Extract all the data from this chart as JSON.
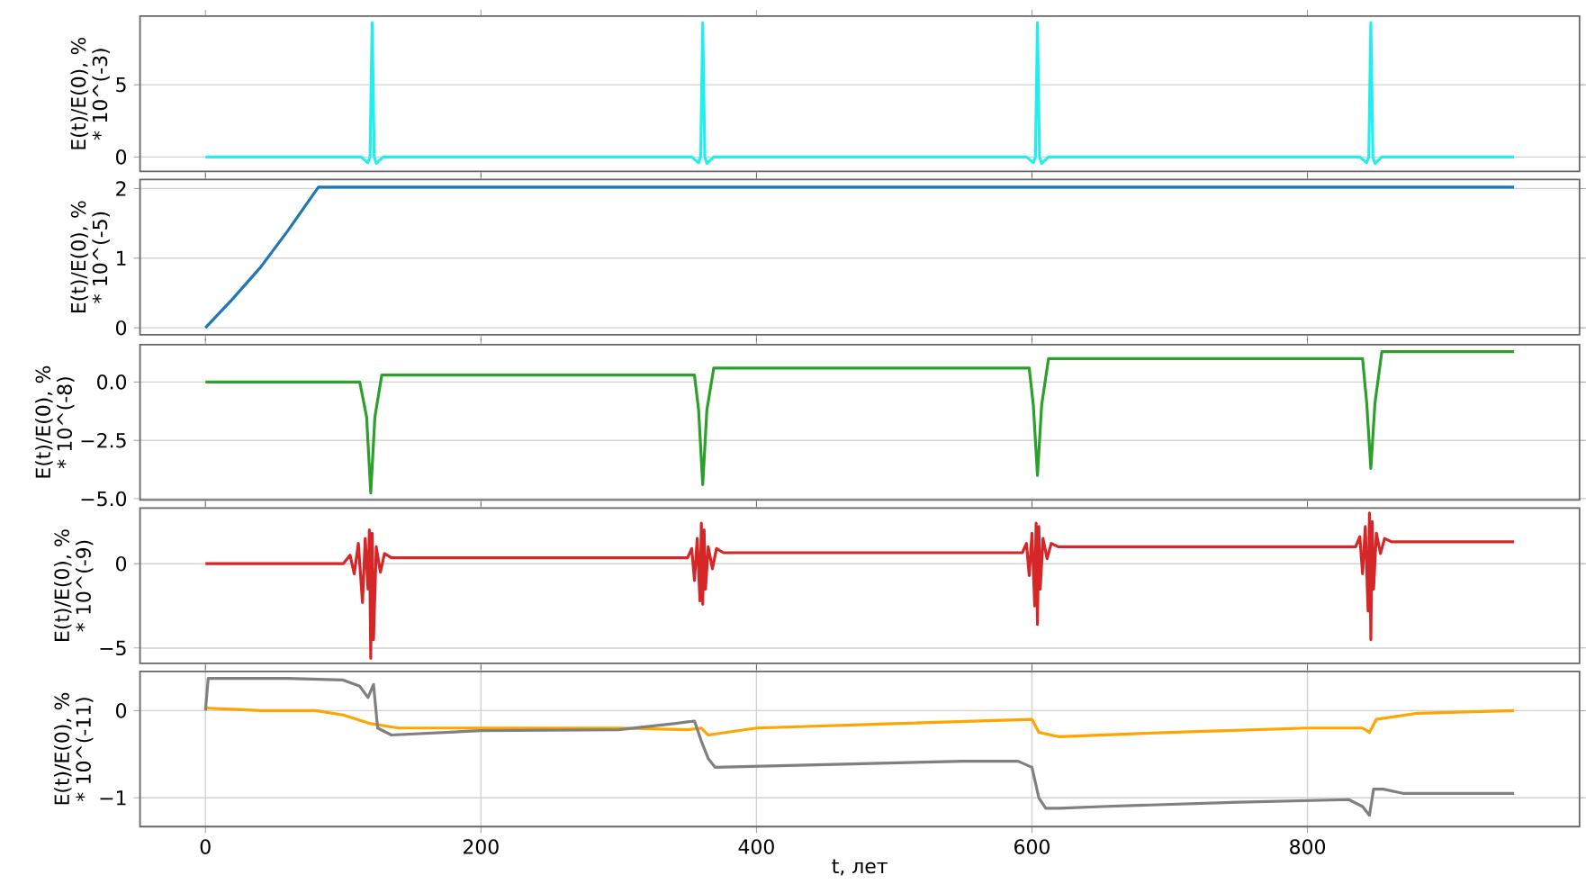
{
  "chart_data": [
    {
      "type": "line",
      "ylabel": "E(t)/E(0), % * 10^(-3)",
      "xlim": [
        -47.5,
        997.5
      ],
      "xticks": [
        0,
        200,
        400,
        600,
        800
      ],
      "ylim": [
        -1.0,
        9.75
      ],
      "yticks": [
        0,
        5
      ],
      "grid": "y",
      "tick_labels": "y",
      "series": [
        {
          "color": "#22eeee",
          "x": [
            0,
            113,
            118,
            119.5,
            121,
            122.5,
            124,
            129,
            353,
            358,
            359.5,
            361,
            362.5,
            364,
            369,
            596,
            601,
            602.5,
            604,
            605.5,
            607,
            612,
            838,
            843,
            844.5,
            846,
            847.5,
            849,
            854,
            950
          ],
          "values": [
            0,
            0,
            -0.4,
            0,
            9.3,
            0,
            -0.45,
            0,
            0,
            -0.4,
            0,
            9.3,
            0,
            -0.45,
            0,
            0,
            -0.4,
            0,
            9.3,
            0,
            -0.45,
            0,
            0,
            -0.4,
            0,
            9.3,
            0,
            -0.45,
            0,
            0
          ]
        }
      ]
    },
    {
      "type": "line",
      "ylabel": "E(t)/E(0), % * 10^(-5)",
      "xlim": [
        -47.5,
        997.5
      ],
      "xticks": [
        0,
        200,
        400,
        600,
        800
      ],
      "ylim": [
        -0.1,
        2.13
      ],
      "yticks": [
        0,
        1,
        2
      ],
      "grid": "y",
      "tick_labels": "y",
      "series": [
        {
          "color": "#1f77b4",
          "x": [
            0,
            20,
            40,
            60,
            82,
            950
          ],
          "values": [
            0,
            0.42,
            0.87,
            1.4,
            2.02,
            2.02
          ]
        }
      ]
    },
    {
      "type": "line",
      "ylabel": "E(t)/E(0), % * 10^(-8)",
      "xlim": [
        -47.5,
        997.5
      ],
      "xticks": [
        0,
        200,
        400,
        600,
        800
      ],
      "ylim": [
        -5.05,
        1.6
      ],
      "yticks": [
        {
          "value": -5,
          "label": "−5.0"
        },
        {
          "value": -2.5,
          "label": "−2.5"
        },
        {
          "value": 0,
          "label": "0.0"
        }
      ],
      "grid": "y",
      "tick_labels": "y",
      "series": [
        {
          "color": "#2ca02c",
          "x": [
            0,
            112,
            117,
            120,
            123,
            128,
            355,
            358,
            361,
            364,
            369,
            598,
            601,
            604,
            607,
            612,
            840,
            843,
            846,
            849,
            854,
            950
          ],
          "values": [
            0,
            0,
            -1.5,
            -4.75,
            -1.5,
            0.3,
            0.3,
            -1.2,
            -4.4,
            -1.2,
            0.6,
            0.6,
            -1.0,
            -4.0,
            -1.0,
            1.0,
            1.0,
            -0.9,
            -3.7,
            -0.9,
            1.3,
            1.3
          ]
        }
      ]
    },
    {
      "type": "line",
      "ylabel": "E(t)/E(0), % * 10^(-9)",
      "xlim": [
        -47.5,
        997.5
      ],
      "xticks": [
        0,
        200,
        400,
        600,
        800
      ],
      "ylim": [
        -5.9,
        3.3
      ],
      "yticks": [
        {
          "value": -5,
          "label": "−5"
        },
        {
          "value": 0,
          "label": "0"
        }
      ],
      "grid": "y",
      "tick_labels": "y",
      "series": [
        {
          "color": "#d62728",
          "x": [
            0,
            100,
            105,
            108,
            111,
            114,
            116,
            118,
            119,
            120,
            121,
            122,
            124,
            127,
            130,
            135,
            350,
            353,
            355,
            357,
            359,
            360,
            361,
            362,
            363,
            365,
            368,
            371,
            376,
            593,
            596,
            598,
            600,
            602,
            603,
            604,
            605,
            606,
            608,
            611,
            614,
            619,
            835,
            838,
            840,
            842,
            844,
            845,
            846,
            847,
            848,
            850,
            853,
            856,
            861,
            950
          ],
          "values": [
            0,
            0,
            0.5,
            -0.6,
            1.2,
            -2.3,
            1.5,
            -1.5,
            2.0,
            -5.6,
            1.8,
            -4.5,
            1.0,
            -0.5,
            0.6,
            0.35,
            0.35,
            0.9,
            -1.0,
            1.5,
            -2.2,
            2.4,
            -2.4,
            2.0,
            -1.5,
            1.0,
            -0.3,
            0.9,
            0.65,
            0.65,
            1.2,
            -0.7,
            1.8,
            -2.5,
            2.4,
            -3.6,
            2.2,
            -1.5,
            1.5,
            0.3,
            1.2,
            1.0,
            1.0,
            1.6,
            -0.6,
            2.2,
            -2.8,
            3.0,
            -4.5,
            2.5,
            -1.5,
            1.8,
            0.6,
            1.5,
            1.3,
            1.3
          ]
        }
      ]
    },
    {
      "type": "line",
      "ylabel": "E(t)/E(0), % * 10^(-11)",
      "xlabel": "t,  лет",
      "xlim": [
        -47.5,
        997.5
      ],
      "xticks": [
        0,
        200,
        400,
        600,
        800
      ],
      "ylim": [
        -1.33,
        0.45
      ],
      "yticks": [
        {
          "value": -1,
          "label": "−1"
        },
        {
          "value": 0,
          "label": "0"
        }
      ],
      "grid": true,
      "series": [
        {
          "color": "#ffa500",
          "x": [
            0,
            40,
            80,
            100,
            120,
            140,
            200,
            300,
            350,
            360,
            365,
            400,
            500,
            600,
            605,
            620,
            700,
            800,
            840,
            845,
            850,
            880,
            950
          ],
          "values": [
            0.03,
            0.0,
            0.0,
            -0.05,
            -0.15,
            -0.2,
            -0.2,
            -0.2,
            -0.22,
            -0.2,
            -0.28,
            -0.2,
            -0.15,
            -0.1,
            -0.25,
            -0.3,
            -0.25,
            -0.2,
            -0.2,
            -0.25,
            -0.1,
            -0.03,
            0.0
          ]
        },
        {
          "color": "#808080",
          "x": [
            0,
            2,
            60,
            100,
            112,
            118,
            122,
            125,
            135,
            200,
            300,
            340,
            355,
            360,
            365,
            370,
            450,
            550,
            590,
            600,
            605,
            610,
            620,
            650,
            750,
            830,
            840,
            845,
            848,
            855,
            870,
            950
          ],
          "values": [
            0,
            0.37,
            0.37,
            0.35,
            0.28,
            0.15,
            0.3,
            -0.2,
            -0.28,
            -0.23,
            -0.22,
            -0.15,
            -0.12,
            -0.35,
            -0.55,
            -0.65,
            -0.62,
            -0.58,
            -0.58,
            -0.65,
            -1.0,
            -1.12,
            -1.12,
            -1.1,
            -1.05,
            -1.02,
            -1.1,
            -1.2,
            -0.9,
            -0.9,
            -0.95,
            -0.95
          ]
        }
      ]
    }
  ]
}
